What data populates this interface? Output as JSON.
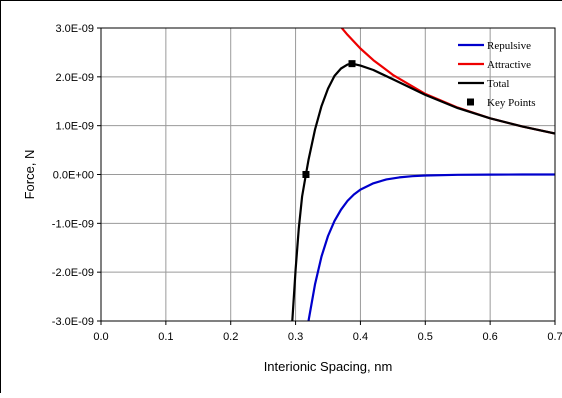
{
  "chart_data": {
    "type": "line",
    "title": "",
    "xlabel": "Interionic Spacing, nm",
    "ylabel": "Force, N",
    "xlim": [
      0,
      0.7
    ],
    "ylim": [
      -3e-09,
      3e-09
    ],
    "x_ticks": [
      0,
      0.1,
      0.2,
      0.3,
      0.4,
      0.5,
      0.6,
      0.7
    ],
    "x_tick_labels": [
      "0.0",
      "0.1",
      "0.2",
      "0.3",
      "0.4",
      "0.5",
      "0.6",
      "0.7"
    ],
    "y_ticks": [
      3e-09,
      2e-09,
      1e-09,
      0,
      -1e-09,
      -2e-09,
      -3e-09
    ],
    "y_tick_labels": [
      "3.0E-09",
      "2.0E-09",
      "1.0E-09",
      "0.0E+00",
      "-1.0E-09",
      "-2.0E-09",
      "-3.0E-09"
    ],
    "grid": true,
    "legend_position": "top-right",
    "series": [
      {
        "name": "Repulsive",
        "color": "#0000cc",
        "style": "line",
        "x": [
          0.32,
          0.33,
          0.34,
          0.35,
          0.36,
          0.37,
          0.38,
          0.39,
          0.4,
          0.42,
          0.44,
          0.46,
          0.48,
          0.5,
          0.55,
          0.6,
          0.65,
          0.7
        ],
        "y": [
          -3e-09,
          -2.25e-09,
          -1.68e-09,
          -1.26e-09,
          -9.5e-10,
          -7.2e-10,
          -5.4e-10,
          -4.1e-10,
          -3.1e-10,
          -1.8e-10,
          -1e-10,
          -6e-11,
          -3.5e-11,
          -2e-11,
          -6e-12,
          -2e-12,
          -5e-13,
          -1e-13
        ]
      },
      {
        "name": "Attractive",
        "color": "#ee0000",
        "style": "line",
        "x": [
          0.365,
          0.38,
          0.4,
          0.42,
          0.45,
          0.5,
          0.55,
          0.6,
          0.65,
          0.7
        ],
        "y": [
          3.1e-09,
          2.86e-09,
          2.58e-09,
          2.34e-09,
          2.04e-09,
          1.65e-09,
          1.37e-09,
          1.15e-09,
          9.8e-10,
          8.4e-10
        ]
      },
      {
        "name": "Total",
        "color": "#000000",
        "style": "line",
        "x": [
          0.295,
          0.3,
          0.305,
          0.31,
          0.316,
          0.32,
          0.33,
          0.34,
          0.35,
          0.36,
          0.37,
          0.38,
          0.387,
          0.39,
          0.4,
          0.42,
          0.45,
          0.5,
          0.55,
          0.6,
          0.65,
          0.7
        ],
        "y": [
          -3e-09,
          -1.95e-09,
          -1.1e-09,
          -4.5e-10,
          0,
          3e-10,
          9.2e-10,
          1.4e-09,
          1.76e-09,
          2.02e-09,
          2.17e-09,
          2.25e-09,
          2.27e-09,
          2.26e-09,
          2.23e-09,
          2.14e-09,
          1.95e-09,
          1.63e-09,
          1.36e-09,
          1.15e-09,
          9.8e-10,
          8.4e-10
        ]
      },
      {
        "name": "Key Points",
        "color": "#000000",
        "style": "marker",
        "x": [
          0.316,
          0.387
        ],
        "y": [
          0,
          2.27e-09
        ]
      }
    ]
  }
}
